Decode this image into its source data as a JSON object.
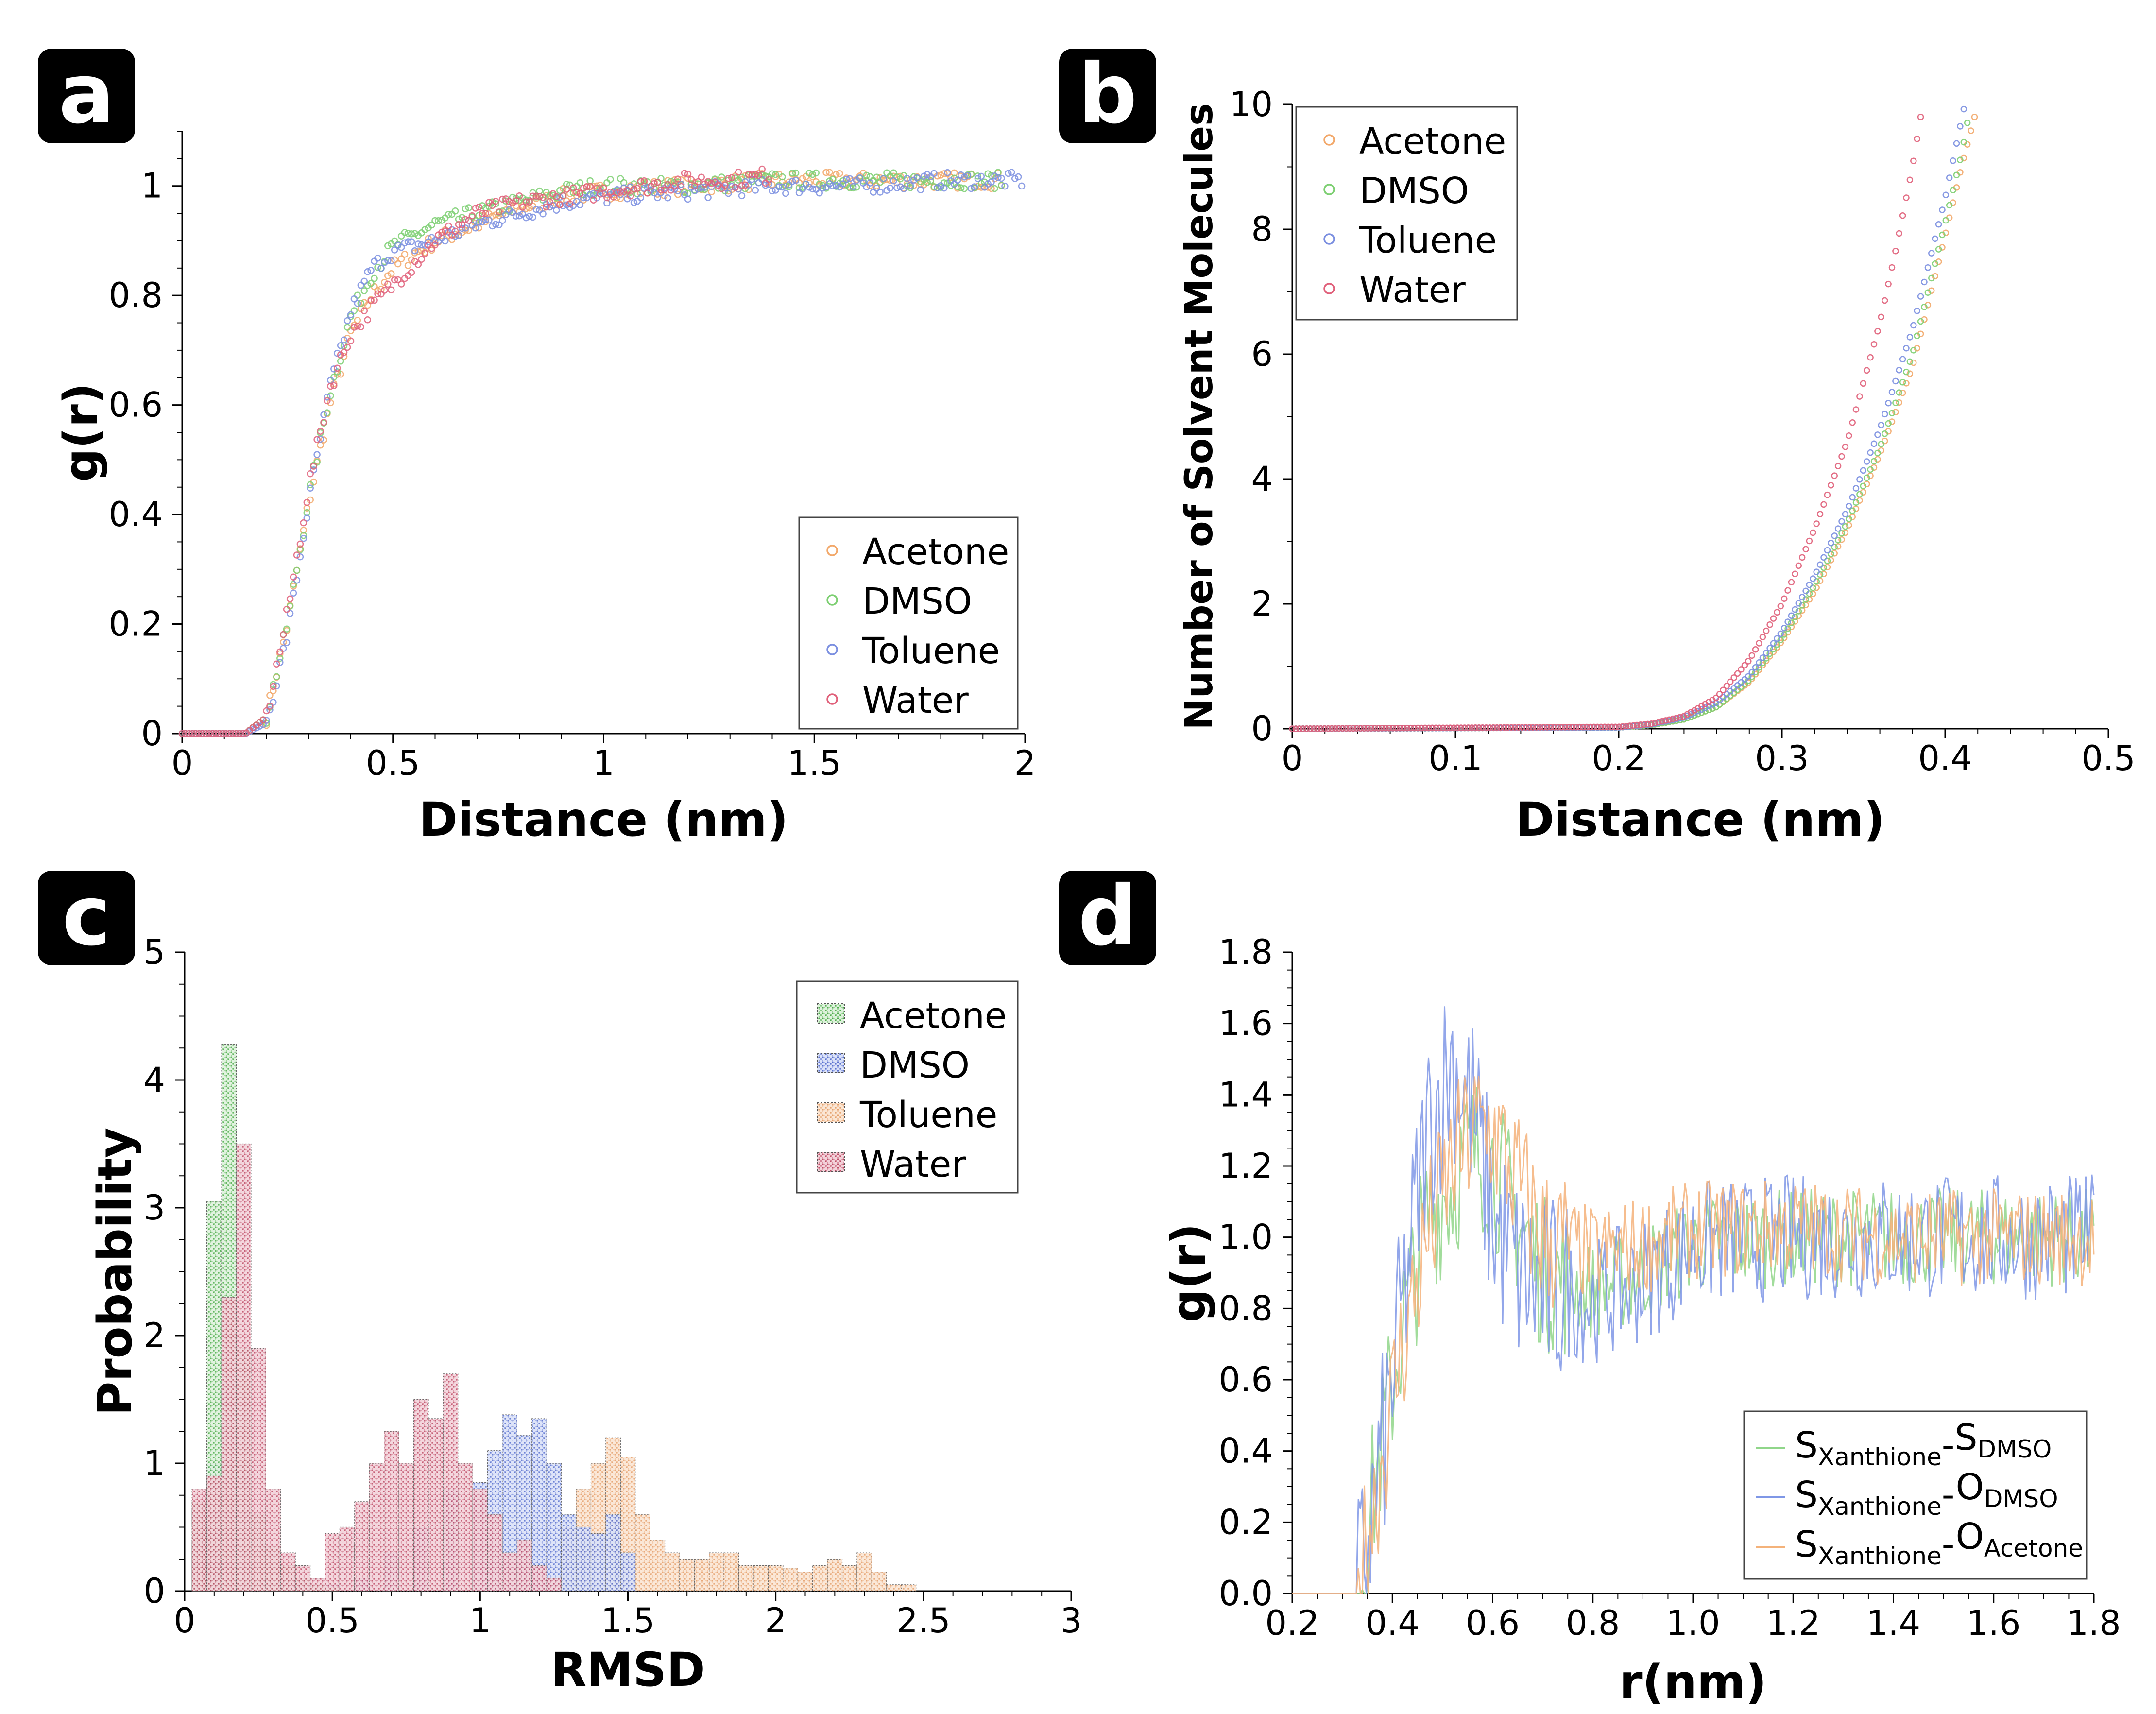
{
  "figure": {
    "panels": [
      "a",
      "b",
      "c",
      "d"
    ]
  },
  "colors": {
    "acetone": "#f2a86a",
    "dmso": "#7dcf72",
    "toluene": "#7b8fe0",
    "water": "#e0607a",
    "hist_acetone": "#6cc46a",
    "hist_dmso": "#6f86df",
    "hist_toluene": "#f3b27f",
    "hist_water": "#d9657f",
    "d_sdmso": "#90d68a",
    "d_odmso": "#7f97e6",
    "d_oacetone": "#f4b27a"
  },
  "chart_data": [
    {
      "panel": "a",
      "type": "scatter",
      "xlabel": "Distance (nm)",
      "ylabel": "g(r)",
      "xlim": [
        0,
        2
      ],
      "ylim": [
        0,
        1.1
      ],
      "xticks": [
        "0",
        "0.5",
        "1",
        "1.5",
        "2"
      ],
      "yticks": [
        "0",
        "0.2",
        "0.4",
        "0.6",
        "0.8",
        "1"
      ],
      "legend": [
        "Acetone",
        "DMSO",
        "Toluene",
        "Water"
      ],
      "series": [
        {
          "name": "Acetone",
          "x": [
            0,
            0.15,
            0.2,
            0.25,
            0.3,
            0.35,
            0.4,
            0.45,
            0.5,
            0.6,
            0.7,
            0.8,
            0.9,
            1.0,
            1.2,
            1.4,
            1.6,
            1.8,
            1.95
          ],
          "y": [
            0,
            0,
            0.03,
            0.2,
            0.42,
            0.6,
            0.73,
            0.8,
            0.85,
            0.9,
            0.93,
            0.96,
            0.98,
            0.99,
            1.0,
            1.01,
            1.01,
            1.01,
            1.01
          ]
        },
        {
          "name": "DMSO",
          "x": [
            0,
            0.15,
            0.2,
            0.25,
            0.3,
            0.35,
            0.4,
            0.45,
            0.5,
            0.6,
            0.7,
            0.8,
            0.9,
            1.0,
            1.2,
            1.4,
            1.6,
            1.8,
            1.95
          ],
          "y": [
            0,
            0,
            0.03,
            0.2,
            0.43,
            0.62,
            0.76,
            0.84,
            0.89,
            0.93,
            0.95,
            0.97,
            0.99,
            1.0,
            1.0,
            1.01,
            1.01,
            1.01,
            1.01
          ]
        },
        {
          "name": "Toluene",
          "x": [
            0,
            0.15,
            0.2,
            0.25,
            0.3,
            0.35,
            0.4,
            0.45,
            0.5,
            0.6,
            0.7,
            0.8,
            0.9,
            1.0,
            1.2,
            1.4,
            1.6,
            1.8,
            2.0
          ],
          "y": [
            0,
            0,
            0.02,
            0.18,
            0.42,
            0.63,
            0.77,
            0.85,
            0.88,
            0.9,
            0.93,
            0.95,
            0.97,
            0.98,
            0.99,
            1.0,
            1.0,
            1.01,
            1.01
          ]
        },
        {
          "name": "Water",
          "x": [
            0,
            0.15,
            0.2,
            0.25,
            0.3,
            0.35,
            0.4,
            0.45,
            0.5,
            0.6,
            0.7,
            0.8,
            0.9,
            1.0,
            1.1,
            1.2,
            1.3,
            1.4
          ],
          "y": [
            0,
            0,
            0.03,
            0.22,
            0.45,
            0.63,
            0.73,
            0.78,
            0.82,
            0.9,
            0.95,
            0.97,
            0.98,
            0.99,
            1.0,
            1.01,
            1.01,
            1.02
          ]
        }
      ]
    },
    {
      "panel": "b",
      "type": "scatter",
      "xlabel": "Distance (nm)",
      "ylabel": "Number of Solvent Molecules",
      "xlim": [
        0,
        0.5
      ],
      "ylim": [
        0,
        10
      ],
      "xticks": [
        "0",
        "0.1",
        "0.2",
        "0.3",
        "0.4",
        "0.5"
      ],
      "yticks": [
        "0",
        "2",
        "4",
        "6",
        "8",
        "10"
      ],
      "legend": [
        "Acetone",
        "DMSO",
        "Toluene",
        "Water"
      ],
      "series": [
        {
          "name": "Acetone",
          "x": [
            0,
            0.2,
            0.22,
            0.24,
            0.26,
            0.28,
            0.3,
            0.32,
            0.34,
            0.36,
            0.38,
            0.4,
            0.41,
            0.418
          ],
          "y": [
            0,
            0.02,
            0.06,
            0.15,
            0.35,
            0.75,
            1.4,
            2.2,
            3.2,
            4.4,
            5.8,
            7.9,
            9.0,
            9.8
          ]
        },
        {
          "name": "DMSO",
          "x": [
            0,
            0.2,
            0.22,
            0.24,
            0.26,
            0.28,
            0.3,
            0.32,
            0.34,
            0.36,
            0.38,
            0.4,
            0.41,
            0.415
          ],
          "y": [
            0,
            0.02,
            0.06,
            0.15,
            0.35,
            0.78,
            1.45,
            2.3,
            3.3,
            4.5,
            6.0,
            8.1,
            9.2,
            9.9
          ]
        },
        {
          "name": "Toluene",
          "x": [
            0,
            0.2,
            0.22,
            0.24,
            0.26,
            0.28,
            0.3,
            0.32,
            0.34,
            0.36,
            0.38,
            0.4,
            0.412
          ],
          "y": [
            0,
            0.02,
            0.07,
            0.18,
            0.42,
            0.85,
            1.55,
            2.45,
            3.5,
            4.8,
            6.4,
            8.5,
            10.0
          ]
        },
        {
          "name": "Water",
          "x": [
            0,
            0.2,
            0.22,
            0.24,
            0.26,
            0.28,
            0.3,
            0.32,
            0.34,
            0.36,
            0.37,
            0.38,
            0.385
          ],
          "y": [
            0,
            0.03,
            0.08,
            0.2,
            0.5,
            1.1,
            2.0,
            3.2,
            4.6,
            6.5,
            7.7,
            9.0,
            9.8
          ]
        }
      ]
    },
    {
      "panel": "c",
      "type": "bar",
      "xlabel": "RMSD",
      "ylabel": "Probability",
      "xlim": [
        0,
        3
      ],
      "ylim": [
        0,
        5
      ],
      "bin_width": 0.05,
      "xticks": [
        "0",
        "0.5",
        "1",
        "1.5",
        "2",
        "2.5",
        "3"
      ],
      "yticks": [
        "0",
        "1",
        "2",
        "3",
        "4",
        "5"
      ],
      "legend": [
        "Acetone",
        "DMSO",
        "Toluene",
        "Water"
      ],
      "series": [
        {
          "name": "Acetone",
          "bins": [
            0.05,
            0.1,
            0.15,
            0.2,
            0.25,
            0.3,
            0.35,
            0.4,
            0.45,
            0.5
          ],
          "values": [
            0.7,
            3.05,
            4.28,
            1.9,
            0.6,
            0.35,
            0.2,
            0.1,
            0.05,
            0.03
          ]
        },
        {
          "name": "DMSO",
          "bins": [
            0.05,
            0.1,
            0.15,
            0.2,
            0.25,
            0.3,
            0.35,
            0.4,
            0.5,
            0.6,
            0.7,
            0.8,
            0.9,
            1.0,
            1.05,
            1.1,
            1.15,
            1.2,
            1.25,
            1.3,
            1.35,
            1.4,
            1.45,
            1.5
          ],
          "values": [
            0.4,
            1.0,
            1.7,
            0.9,
            0.4,
            0.2,
            0.1,
            0.05,
            0.05,
            0.1,
            0.3,
            0.5,
            0.8,
            0.85,
            1.1,
            1.38,
            1.22,
            1.35,
            1.0,
            0.6,
            0.5,
            0.45,
            0.6,
            0.3
          ]
        },
        {
          "name": "Toluene",
          "bins": [
            0.05,
            0.1,
            0.15,
            0.2,
            0.25,
            0.3,
            1.3,
            1.35,
            1.4,
            1.45,
            1.5,
            1.55,
            1.6,
            1.65,
            1.7,
            1.75,
            1.8,
            1.85,
            1.9,
            1.95,
            2.0,
            2.05,
            2.1,
            2.15,
            2.2,
            2.25,
            2.3,
            2.35,
            2.4,
            2.45
          ],
          "values": [
            0.3,
            0.6,
            0.8,
            0.5,
            0.3,
            0.15,
            0.5,
            0.8,
            1.0,
            1.2,
            1.05,
            0.6,
            0.4,
            0.3,
            0.25,
            0.25,
            0.3,
            0.3,
            0.2,
            0.2,
            0.2,
            0.18,
            0.15,
            0.2,
            0.25,
            0.2,
            0.3,
            0.15,
            0.05,
            0.05
          ]
        },
        {
          "name": "Water",
          "bins": [
            0.05,
            0.1,
            0.15,
            0.2,
            0.25,
            0.3,
            0.35,
            0.4,
            0.45,
            0.5,
            0.55,
            0.6,
            0.65,
            0.7,
            0.75,
            0.8,
            0.85,
            0.9,
            0.95,
            1.0,
            1.05,
            1.1,
            1.15,
            1.2,
            1.25
          ],
          "values": [
            0.8,
            0.9,
            2.3,
            3.5,
            1.9,
            0.8,
            0.3,
            0.2,
            0.1,
            0.45,
            0.5,
            0.7,
            1.0,
            1.25,
            1.0,
            1.5,
            1.35,
            1.7,
            1.0,
            0.8,
            0.6,
            0.3,
            0.4,
            0.2,
            0.1
          ]
        }
      ]
    },
    {
      "panel": "d",
      "type": "line",
      "xlabel": "r(nm)",
      "ylabel": "g(r)",
      "xlim": [
        0.2,
        1.8
      ],
      "ylim": [
        0,
        1.8
      ],
      "xticks": [
        "0.2",
        "0.4",
        "0.6",
        "0.8",
        "1.0",
        "1.2",
        "1.4",
        "1.6",
        "1.8"
      ],
      "yticks": [
        "0.0",
        "0.2",
        "0.4",
        "0.6",
        "0.8",
        "1.0",
        "1.2",
        "1.4",
        "1.6",
        "1.8"
      ],
      "legend": [
        {
          "main": "S",
          "sub1": "Xanthione",
          "dash": "-",
          "main2": "S",
          "sub2": "DMSO"
        },
        {
          "main": "S",
          "sub1": "Xanthione",
          "dash": "-",
          "main2": "O",
          "sub2": "DMSO"
        },
        {
          "main": "S",
          "sub1": "Xanthione",
          "dash": "-",
          "main2": "O",
          "sub2": "Acetone"
        }
      ],
      "series": [
        {
          "name": "SXanthione-SDMSO",
          "x": [
            0.2,
            0.33,
            0.37,
            0.42,
            0.47,
            0.52,
            0.56,
            0.6,
            0.65,
            0.7,
            0.8,
            0.9,
            1.0,
            1.2,
            1.4,
            1.6,
            1.8
          ],
          "y": [
            0,
            0,
            0.35,
            0.75,
            1.05,
            1.15,
            1.25,
            1.2,
            1.05,
            0.9,
            0.85,
            0.9,
            0.98,
            1.0,
            1.0,
            1.0,
            1.0
          ],
          "noise": 0.14
        },
        {
          "name": "SXanthione-ODMSO",
          "x": [
            0.2,
            0.33,
            0.37,
            0.42,
            0.47,
            0.52,
            0.56,
            0.6,
            0.65,
            0.7,
            0.8,
            0.9,
            1.0,
            1.2,
            1.4,
            1.6,
            1.8
          ],
          "y": [
            0,
            0,
            0.3,
            0.8,
            1.3,
            1.5,
            1.35,
            1.05,
            0.9,
            0.85,
            0.82,
            0.88,
            0.98,
            1.0,
            1.0,
            1.0,
            1.0
          ],
          "noise": 0.18
        },
        {
          "name": "SXanthione-OAcetone",
          "x": [
            0.2,
            0.33,
            0.37,
            0.42,
            0.47,
            0.52,
            0.56,
            0.6,
            0.65,
            0.7,
            0.8,
            0.9,
            1.0,
            1.2,
            1.4,
            1.6,
            1.8
          ],
          "y": [
            0,
            0,
            0.3,
            0.7,
            1.0,
            1.2,
            1.3,
            1.3,
            1.15,
            1.0,
            0.95,
            0.98,
            1.02,
            1.03,
            1.0,
            1.0,
            1.0
          ],
          "noise": 0.14
        }
      ]
    }
  ]
}
